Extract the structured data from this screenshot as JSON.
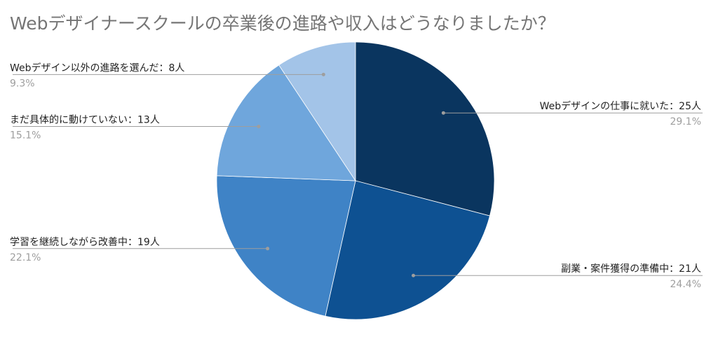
{
  "chart_data": {
    "type": "pie",
    "title": "Webデザイナースクールの卒業後の進路や収入はどうなりましたか？",
    "start_angle_deg": 0,
    "slices": [
      {
        "label": "Webデザインの仕事に就いた：25人",
        "value": 25,
        "percent": "29.1%",
        "color": "#0a355f",
        "side": "right"
      },
      {
        "label": "副業・案件獲得の準備中：21人",
        "value": 21,
        "percent": "24.4%",
        "color": "#0e5192",
        "side": "right"
      },
      {
        "label": "学習を継続しながら改善中：19人",
        "value": 19,
        "percent": "22.1%",
        "color": "#3f83c6",
        "side": "left"
      },
      {
        "label": "まだ具体的に動けていない：13人",
        "value": 13,
        "percent": "15.1%",
        "color": "#6fa6dc",
        "side": "left"
      },
      {
        "label": "Webデザイン以外の進路を選んだ：8人",
        "value": 8,
        "percent": "9.3%",
        "color": "#a3c4e8",
        "side": "left"
      }
    ],
    "legend": "none"
  }
}
